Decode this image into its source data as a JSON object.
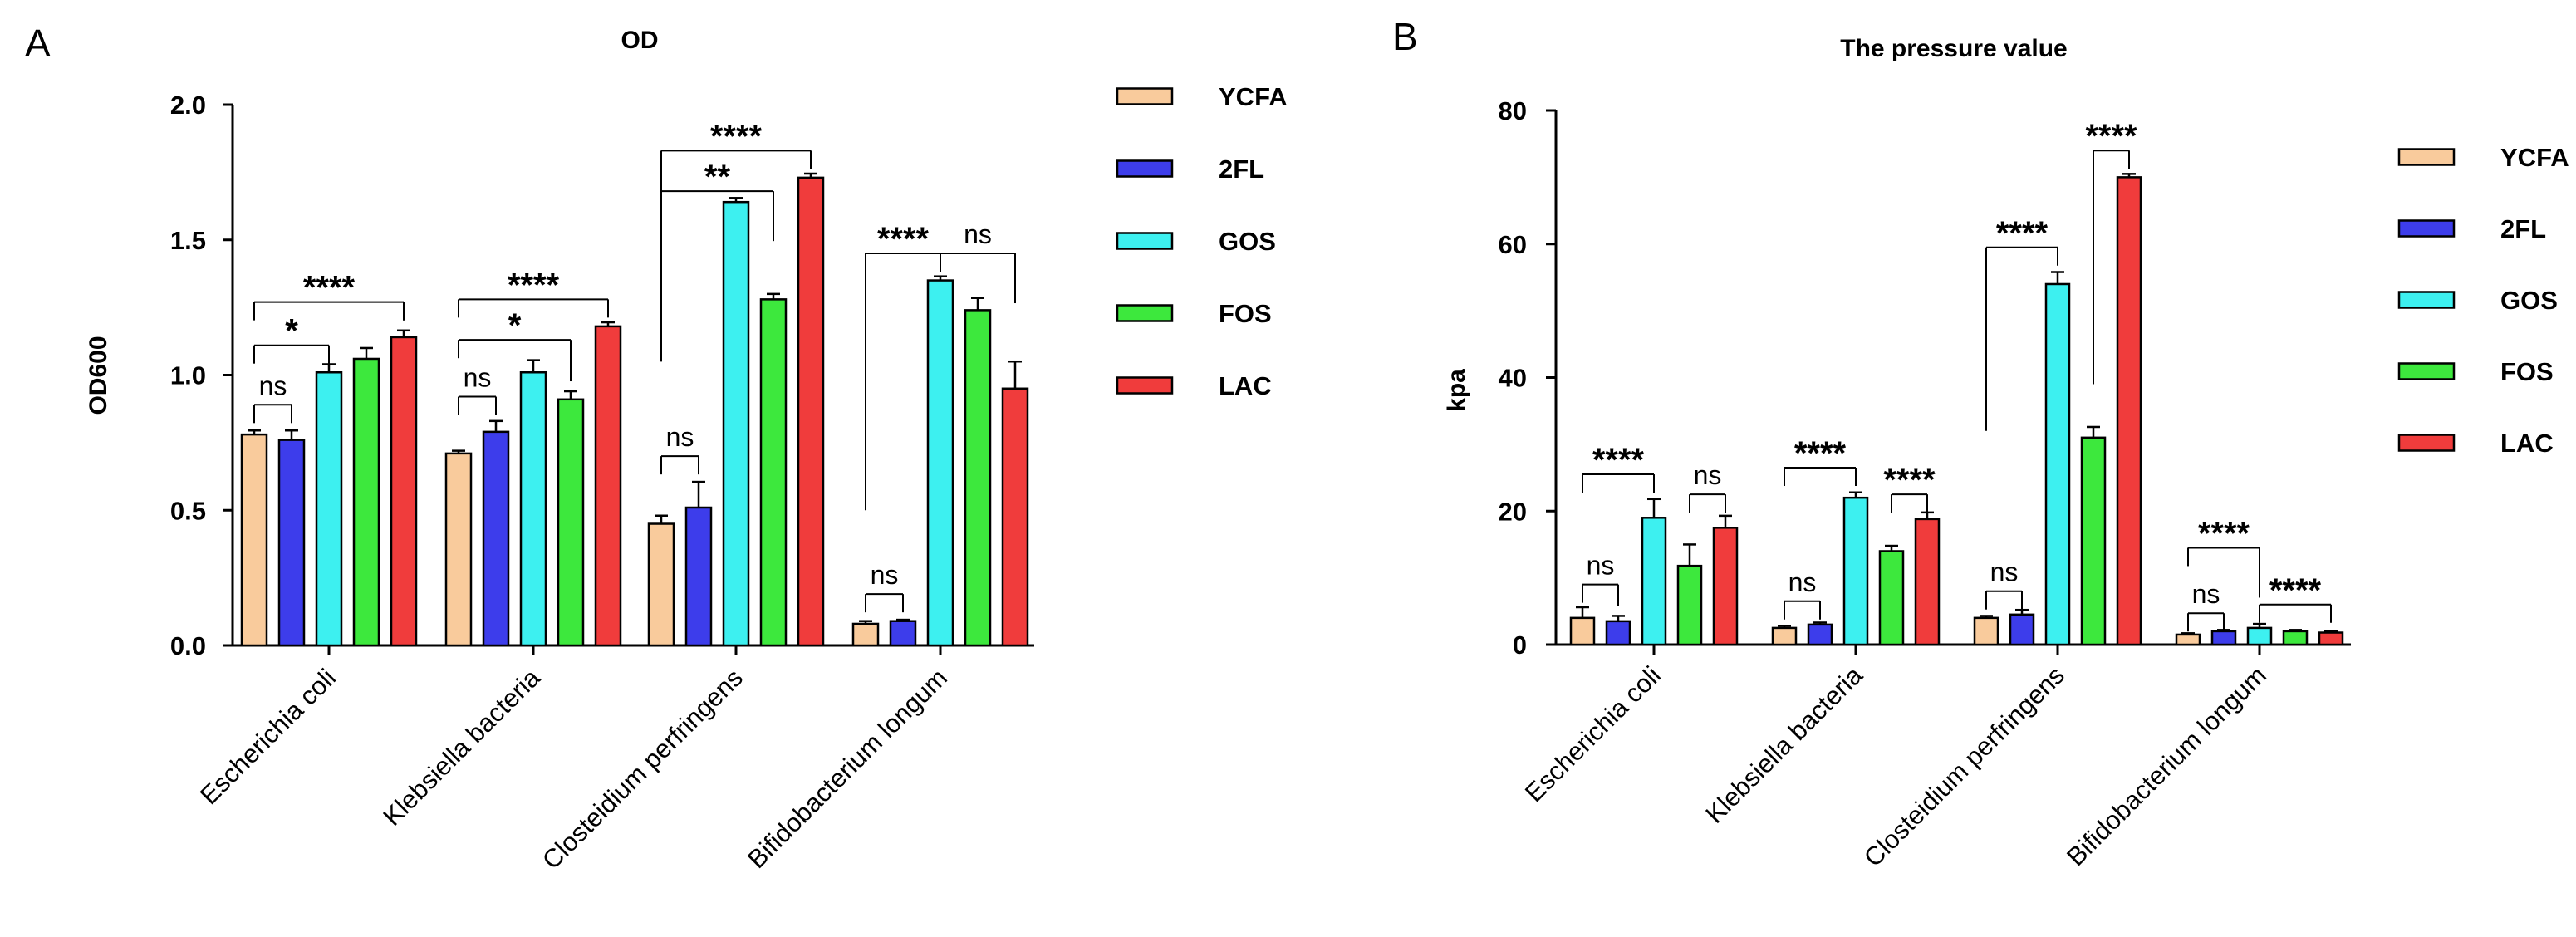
{
  "legend_colors": [
    "#F9CB9C",
    "#3D3DEB",
    "#3DF0F0",
    "#3DE83D",
    "#F03C3C"
  ],
  "chart_data": [
    {
      "type": "bar",
      "panel_label": "A",
      "title": "OD",
      "xlabel": "",
      "ylabel": "OD600",
      "ylim": [
        0,
        2.0
      ],
      "yticks": [
        "0.0",
        "0.5",
        "1.0",
        "1.5",
        "2.0"
      ],
      "ytick_values": [
        0,
        0.5,
        1.0,
        1.5,
        2.0
      ],
      "categories": [
        "Escherichia coli",
        "Klebsiella bacteria",
        "Closteidium perfringens",
        "Bifidobacterium longum"
      ],
      "series": [
        {
          "name": "YCFA",
          "values": [
            0.78,
            0.71,
            0.45,
            0.08
          ],
          "errors": [
            0.015,
            0.01,
            0.03,
            0.01
          ]
        },
        {
          "name": "2FL",
          "values": [
            0.76,
            0.79,
            0.51,
            0.09
          ],
          "errors": [
            0.035,
            0.04,
            0.095,
            0.005
          ]
        },
        {
          "name": "GOS",
          "values": [
            1.01,
            1.01,
            1.64,
            1.35
          ],
          "errors": [
            0.03,
            0.045,
            0.015,
            0.015
          ]
        },
        {
          "name": "FOS",
          "values": [
            1.06,
            0.91,
            1.28,
            1.24
          ],
          "errors": [
            0.04,
            0.03,
            0.02,
            0.045
          ]
        },
        {
          "name": "LAC",
          "values": [
            1.14,
            1.18,
            1.73,
            0.95
          ],
          "errors": [
            0.025,
            0.015,
            0.015,
            0.1
          ]
        }
      ],
      "legend_position": "right",
      "annotations": [
        {
          "cat": 0,
          "from": 0,
          "to": 1,
          "text": "ns",
          "y": 0.89
        },
        {
          "cat": 0,
          "from": 0,
          "to": 2,
          "text": "*",
          "y": 1.11
        },
        {
          "cat": 0,
          "from": 0,
          "to": 4,
          "text": "****",
          "y": 1.27
        },
        {
          "cat": 1,
          "from": 0,
          "to": 1,
          "text": "ns",
          "y": 0.92
        },
        {
          "cat": 1,
          "from": 0,
          "to": 3,
          "text": "*",
          "y": 1.13
        },
        {
          "cat": 1,
          "from": 0,
          "to": 4,
          "text": "****",
          "y": 1.28
        },
        {
          "cat": 2,
          "from": 0,
          "to": 1,
          "text": "ns",
          "y": 0.7
        },
        {
          "cat": 2,
          "from": 0,
          "to": 3,
          "text": "**",
          "y": 1.68,
          "leftDrop": 1.05
        },
        {
          "cat": 2,
          "from": 0,
          "to": 4,
          "text": "****",
          "y": 1.83,
          "leftDrop": 1.05
        },
        {
          "cat": 3,
          "from": 0,
          "to": 1,
          "text": "ns",
          "y": 0.19
        },
        {
          "cat": 3,
          "from": 0,
          "to": 2,
          "text": "****",
          "y": 1.45,
          "leftDrop": 0.5
        },
        {
          "cat": 3,
          "from": 2,
          "to": 4,
          "text": "ns",
          "y": 1.45
        }
      ]
    },
    {
      "type": "bar",
      "panel_label": "B",
      "title": "The pressure value",
      "xlabel": "",
      "ylabel": "kpa",
      "ylim": [
        0,
        80
      ],
      "yticks": [
        "0",
        "20",
        "40",
        "60",
        "80"
      ],
      "ytick_values": [
        0,
        20,
        40,
        60,
        80
      ],
      "categories": [
        "Escherichia coli",
        "Klebsiella bacteria",
        "Closteidium perfringens",
        "Bifidobacterium longum"
      ],
      "series": [
        {
          "name": "YCFA",
          "values": [
            4.0,
            2.5,
            4.0,
            1.5
          ],
          "errors": [
            1.6,
            0.3,
            0.3,
            0.2
          ]
        },
        {
          "name": "2FL",
          "values": [
            3.5,
            3.0,
            4.5,
            2.0
          ],
          "errors": [
            0.8,
            0.3,
            0.7,
            0.2
          ]
        },
        {
          "name": "GOS",
          "values": [
            19.0,
            22.0,
            54.0,
            2.5
          ],
          "errors": [
            2.8,
            0.8,
            1.8,
            0.6
          ]
        },
        {
          "name": "FOS",
          "values": [
            11.8,
            14.0,
            31.0,
            2.0
          ],
          "errors": [
            3.2,
            0.8,
            1.6,
            0.2
          ]
        },
        {
          "name": "LAC",
          "values": [
            17.5,
            18.8,
            70.0,
            1.8
          ],
          "errors": [
            1.8,
            1.0,
            0.5,
            0.2
          ]
        }
      ],
      "legend_position": "right",
      "annotations": [
        {
          "cat": 0,
          "from": 0,
          "to": 1,
          "text": "ns",
          "y": 9.0
        },
        {
          "cat": 0,
          "from": 0,
          "to": 2,
          "text": "****",
          "y": 25.5
        },
        {
          "cat": 0,
          "from": 3,
          "to": 4,
          "text": "ns",
          "y": 22.5
        },
        {
          "cat": 1,
          "from": 0,
          "to": 1,
          "text": "ns",
          "y": 6.5
        },
        {
          "cat": 1,
          "from": 0,
          "to": 2,
          "text": "****",
          "y": 26.5
        },
        {
          "cat": 1,
          "from": 3,
          "to": 4,
          "text": "****",
          "y": 22.5
        },
        {
          "cat": 2,
          "from": 0,
          "to": 1,
          "text": "ns",
          "y": 8.0
        },
        {
          "cat": 2,
          "from": 0,
          "to": 2,
          "text": "****",
          "y": 59.5,
          "leftDrop": 32
        },
        {
          "cat": 2,
          "from": 3,
          "to": 4,
          "text": "****",
          "y": 74.0,
          "leftDrop": 39
        },
        {
          "cat": 3,
          "from": 0,
          "to": 1,
          "text": "ns",
          "y": 4.7
        },
        {
          "cat": 3,
          "from": 0,
          "to": 2,
          "text": "****",
          "y": 14.5
        },
        {
          "cat": 3,
          "from": 2,
          "to": 4,
          "text": "****",
          "y": 6.0
        }
      ]
    }
  ]
}
